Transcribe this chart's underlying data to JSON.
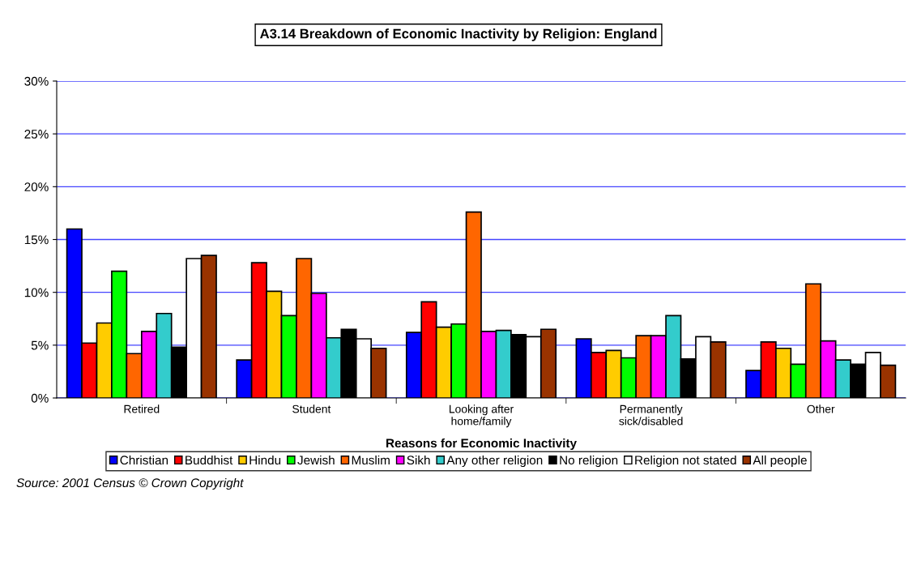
{
  "chart_data": {
    "type": "bar",
    "title": "A3.14 Breakdown of Economic Inactivity by Religion: England",
    "xlabel": "Reasons for Economic Inactivity",
    "categories": [
      "Retired",
      "Student",
      "Looking after\nhome/family",
      "Permanently\nsick/disabled",
      "Other"
    ],
    "series": [
      {
        "name": "Christian",
        "color": "#0000ff",
        "values": [
          16.0,
          3.6,
          6.2,
          5.6,
          2.6
        ]
      },
      {
        "name": "Buddhist",
        "color": "#ff0000",
        "values": [
          5.2,
          12.8,
          9.1,
          4.3,
          5.3
        ]
      },
      {
        "name": "Hindu",
        "color": "#ffcc00",
        "values": [
          7.1,
          10.1,
          6.7,
          4.5,
          4.7
        ]
      },
      {
        "name": "Jewish",
        "color": "#00ff00",
        "values": [
          12.0,
          7.8,
          7.0,
          3.8,
          3.2
        ]
      },
      {
        "name": "Muslim",
        "color": "#ff6600",
        "values": [
          4.2,
          13.2,
          17.6,
          5.9,
          10.8
        ]
      },
      {
        "name": "Sikh",
        "color": "#ff00ff",
        "values": [
          6.3,
          9.9,
          6.3,
          5.9,
          5.4
        ]
      },
      {
        "name": "Any other religion",
        "color": "#33cccc",
        "values": [
          8.0,
          5.7,
          6.4,
          7.8,
          3.6
        ]
      },
      {
        "name": "No religion",
        "color": "#000000",
        "values": [
          4.8,
          6.5,
          6.0,
          3.7,
          3.2
        ]
      },
      {
        "name": "Religion not stated",
        "color": "#ffffff",
        "values": [
          13.2,
          5.6,
          5.8,
          5.8,
          4.3
        ]
      },
      {
        "name": "All people",
        "color": "#993300",
        "values": [
          13.5,
          4.7,
          6.5,
          5.3,
          3.1
        ]
      }
    ],
    "ylim": [
      0,
      30
    ],
    "yticks": [
      {
        "value": 0,
        "label": "0%"
      },
      {
        "value": 5,
        "label": "5%"
      },
      {
        "value": 10,
        "label": "10%"
      },
      {
        "value": 15,
        "label": "15%"
      },
      {
        "value": 20,
        "label": "20%"
      },
      {
        "value": 25,
        "label": "25%"
      },
      {
        "value": 30,
        "label": "30%"
      }
    ],
    "grid": "y",
    "legend": "bottom",
    "annotations": [
      "Source: 2001 Census © Crown Copyright"
    ]
  }
}
